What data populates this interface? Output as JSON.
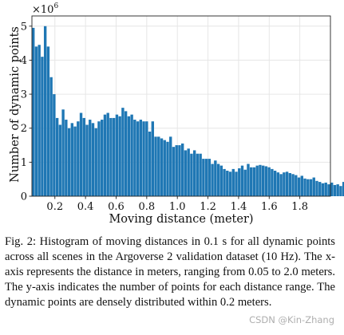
{
  "chart_data": {
    "type": "bar",
    "bar_color": "#1f77b4",
    "x_start": 0.05,
    "bin_width": 0.0195,
    "values": [
      4.95,
      4.4,
      4.45,
      4.1,
      5.0,
      4.4,
      3.5,
      3.0,
      2.3,
      2.1,
      2.55,
      2.25,
      2.0,
      2.15,
      2.05,
      2.2,
      2.45,
      2.3,
      2.1,
      2.25,
      2.15,
      2.0,
      2.2,
      2.25,
      2.4,
      2.45,
      2.3,
      2.3,
      2.4,
      2.35,
      2.6,
      2.5,
      2.35,
      2.4,
      2.25,
      2.2,
      2.25,
      2.2,
      2.2,
      1.9,
      2.2,
      1.75,
      1.75,
      1.7,
      1.65,
      1.6,
      1.75,
      1.45,
      1.5,
      1.5,
      1.55,
      1.35,
      1.4,
      1.25,
      1.35,
      1.25,
      1.25,
      1.1,
      1.1,
      1.1,
      0.95,
      1.05,
      0.95,
      0.9,
      0.8,
      0.75,
      0.72,
      0.8,
      0.72,
      0.82,
      0.9,
      0.78,
      0.95,
      0.85,
      0.85,
      0.9,
      0.92,
      0.9,
      0.88,
      0.85,
      0.8,
      0.75,
      0.7,
      0.65,
      0.7,
      0.72,
      0.68,
      0.65,
      0.62,
      0.55,
      0.6,
      0.52,
      0.5,
      0.5,
      0.55,
      0.45,
      0.42,
      0.38,
      0.4,
      0.35,
      0.4,
      0.33,
      0.35,
      0.3,
      0.42,
      0.45,
      0.4,
      0.35,
      0.3,
      0.42,
      0.45,
      0.3,
      0.18,
      0.2,
      0.15,
      0.12,
      0.2,
      0.18,
      0.2,
      0.15,
      0.2,
      0.12,
      0.13,
      0.15,
      0.2,
      0.2,
      0.18,
      0.15,
      0.12,
      0.1
    ],
    "xlim": [
      0.05,
      2.0
    ],
    "ylim": [
      0,
      5.3
    ],
    "xticks": [
      0.2,
      0.4,
      0.6,
      0.8,
      1.0,
      1.2,
      1.4,
      1.6,
      1.8
    ],
    "xtick_labels": [
      "0.2",
      "0.4",
      "0.6",
      "0.8",
      "1.0",
      "1.2",
      "1.4",
      "1.6",
      "1.8"
    ],
    "yticks": [
      0,
      1,
      2,
      3,
      4,
      5
    ],
    "ytick_labels": [
      "0",
      "1",
      "2",
      "3",
      "4",
      "5"
    ],
    "xlabel": "Moving distance (meter)",
    "ylabel": "Number of dynamic points",
    "y_multiplier": "×10",
    "y_multiplier_exp": "6",
    "grid": true
  },
  "caption": {
    "text": "Fig. 2: Histogram of moving distances in 0.1 s for all dynamic points across all scenes in the Argoverse 2 validation dataset (10 Hz). The x-axis represents the distance in meters, ranging from 0.05 to 2.0 meters. The y-axis indicates the number of points for each distance range. The dynamic points are densely distributed within 0.2 meters."
  },
  "watermark": {
    "text": "CSDN @Kin-Zhang"
  }
}
